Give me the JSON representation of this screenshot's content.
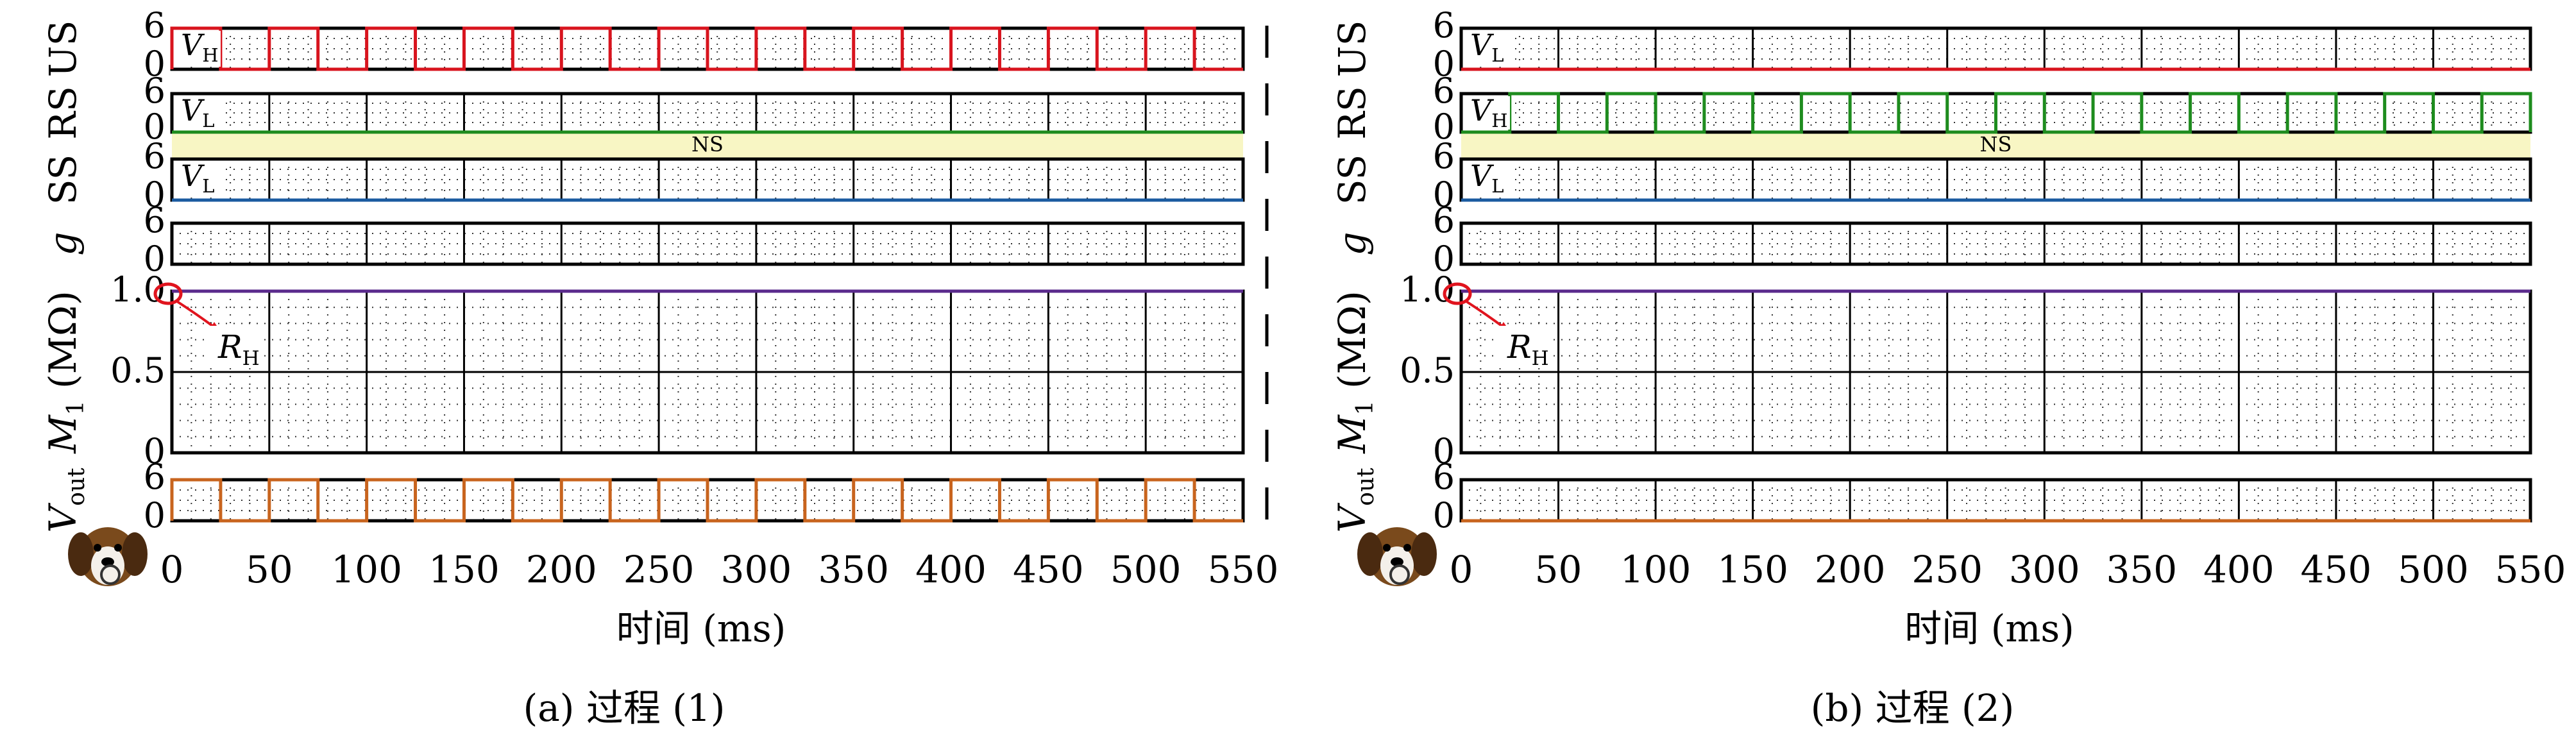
{
  "time_ticks": [
    "0",
    "50",
    "100",
    "150",
    "200",
    "250",
    "300",
    "350",
    "400",
    "450",
    "500",
    "550"
  ],
  "colors": {
    "US": "#d8141e",
    "RS": "#1e8c1e",
    "SS": "#1a5aa0",
    "g": "#000000",
    "M1": "#5a2a8c",
    "Vout": "#c8641e",
    "NS_band": "#f8f6c4",
    "annotation": "#e0141e"
  },
  "chart_data": [
    {
      "type": "line",
      "caption": "(a) 过程 (1)",
      "xlabel": "时间 (ms)",
      "xlim": [
        0,
        550
      ],
      "xticks": [
        0,
        50,
        100,
        150,
        200,
        250,
        300,
        350,
        400,
        450,
        500,
        550
      ],
      "panels": [
        {
          "id": "US",
          "ylabel": "US",
          "ylim": [
            0,
            6
          ],
          "yticks": [
            "0",
            "6"
          ],
          "tag": "V",
          "tag_sub": "H",
          "signal": {
            "kind": "square",
            "period": 50,
            "duty": 0.5,
            "high": 6,
            "low": 0,
            "start_high": true,
            "start": 0,
            "end": 550
          }
        },
        {
          "id": "RS",
          "ylabel": "RS",
          "ylim": [
            0,
            6
          ],
          "yticks": [
            "0",
            "6"
          ],
          "tag": "V",
          "tag_sub": "L",
          "signal": {
            "kind": "constant",
            "value": 0
          }
        },
        {
          "id": "SS",
          "ylabel": "SS",
          "ylim": [
            0,
            6
          ],
          "yticks": [
            "0",
            "6"
          ],
          "tag": "V",
          "tag_sub": "L",
          "signal": {
            "kind": "constant",
            "value": 0
          }
        },
        {
          "id": "g",
          "ylabel": "g",
          "ylim": [
            0,
            6
          ],
          "yticks": [
            "0",
            "6"
          ],
          "signal": {
            "kind": "constant",
            "value": 6
          }
        },
        {
          "id": "M1",
          "ylabel": "M",
          "ylabel_sub": "1",
          "ylabel_unit": "(MΩ)",
          "ylim": [
            0,
            1.0
          ],
          "yticks": [
            "0",
            "0.5",
            "1.0"
          ],
          "annotation": {
            "text": "R",
            "sub": "H"
          },
          "signal": {
            "kind": "constant",
            "value": 1.0
          }
        },
        {
          "id": "Vout",
          "ylabel": "V",
          "ylabel_sub": "out",
          "ylim": [
            0,
            6
          ],
          "yticks": [
            "0",
            "6"
          ],
          "signal": {
            "kind": "square",
            "period": 50,
            "duty": 0.5,
            "high": 6,
            "low": 0,
            "start_high": true,
            "start": 0,
            "end": 550
          }
        }
      ],
      "band_label": "NS"
    },
    {
      "type": "line",
      "caption": "(b) 过程 (2)",
      "xlabel": "时间 (ms)",
      "xlim": [
        0,
        550
      ],
      "xticks": [
        0,
        50,
        100,
        150,
        200,
        250,
        300,
        350,
        400,
        450,
        500,
        550
      ],
      "panels": [
        {
          "id": "US",
          "ylabel": "US",
          "ylim": [
            0,
            6
          ],
          "yticks": [
            "0",
            "6"
          ],
          "tag": "V",
          "tag_sub": "L",
          "signal": {
            "kind": "constant",
            "value": 0
          }
        },
        {
          "id": "RS",
          "ylabel": "RS",
          "ylim": [
            0,
            6
          ],
          "yticks": [
            "0",
            "6"
          ],
          "tag": "V",
          "tag_sub": "H",
          "signal": {
            "kind": "square",
            "period": 50,
            "duty": 0.5,
            "high": 6,
            "low": 0,
            "start_high": true,
            "start": 25,
            "end": 550
          }
        },
        {
          "id": "SS",
          "ylabel": "SS",
          "ylim": [
            0,
            6
          ],
          "yticks": [
            "0",
            "6"
          ],
          "tag": "V",
          "tag_sub": "L",
          "signal": {
            "kind": "constant",
            "value": 0
          }
        },
        {
          "id": "g",
          "ylabel": "g",
          "ylim": [
            0,
            6
          ],
          "yticks": [
            "0",
            "6"
          ],
          "signal": {
            "kind": "constant",
            "value": 6
          }
        },
        {
          "id": "M1",
          "ylabel": "M",
          "ylabel_sub": "1",
          "ylabel_unit": "(MΩ)",
          "ylim": [
            0,
            1.0
          ],
          "yticks": [
            "0",
            "0.5",
            "1.0"
          ],
          "annotation": {
            "text": "R",
            "sub": "H"
          },
          "signal": {
            "kind": "constant",
            "value": 1.0
          }
        },
        {
          "id": "Vout",
          "ylabel": "V",
          "ylabel_sub": "out",
          "ylim": [
            0,
            6
          ],
          "yticks": [
            "0",
            "6"
          ],
          "signal": {
            "kind": "constant",
            "value": 0
          }
        }
      ],
      "band_label": "NS"
    }
  ]
}
